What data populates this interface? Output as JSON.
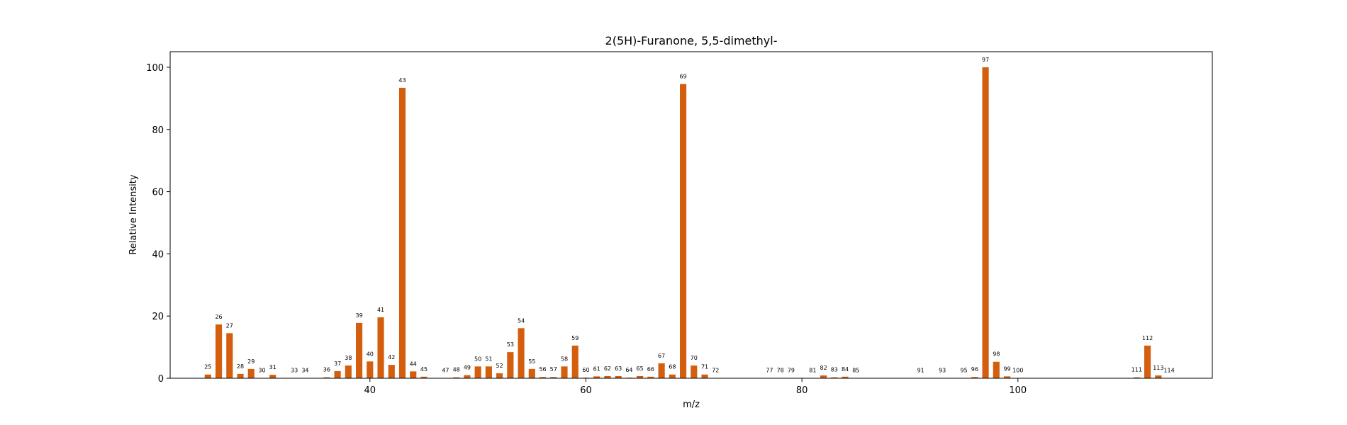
{
  "chart_data": {
    "type": "bar",
    "title": "2(5H)-Furanone, 5,5-dimethyl-",
    "xlabel": "m/z",
    "ylabel": "Relative Intensity",
    "xlim": [
      21.5,
      118
    ],
    "ylim": [
      0,
      105
    ],
    "xticks": [
      40,
      60,
      80,
      100
    ],
    "yticks": [
      0,
      20,
      40,
      60,
      80,
      100
    ],
    "grid": false,
    "bar_color": "#d35f0e",
    "peaks": [
      {
        "mz": 25,
        "intensity": 1.2
      },
      {
        "mz": 26,
        "intensity": 17.3
      },
      {
        "mz": 27,
        "intensity": 14.5
      },
      {
        "mz": 28,
        "intensity": 1.4
      },
      {
        "mz": 29,
        "intensity": 3.0
      },
      {
        "mz": 30,
        "intensity": 0.1
      },
      {
        "mz": 31,
        "intensity": 1.1
      },
      {
        "mz": 33,
        "intensity": 0.1
      },
      {
        "mz": 34,
        "intensity": 0.1
      },
      {
        "mz": 36,
        "intensity": 0.3
      },
      {
        "mz": 37,
        "intensity": 2.3
      },
      {
        "mz": 38,
        "intensity": 4.1
      },
      {
        "mz": 39,
        "intensity": 17.8
      },
      {
        "mz": 40,
        "intensity": 5.4
      },
      {
        "mz": 41,
        "intensity": 19.6
      },
      {
        "mz": 42,
        "intensity": 4.3
      },
      {
        "mz": 43,
        "intensity": 93.4
      },
      {
        "mz": 44,
        "intensity": 2.2
      },
      {
        "mz": 45,
        "intensity": 0.5
      },
      {
        "mz": 47,
        "intensity": 0.1
      },
      {
        "mz": 48,
        "intensity": 0.3
      },
      {
        "mz": 49,
        "intensity": 1.0
      },
      {
        "mz": 50,
        "intensity": 3.8
      },
      {
        "mz": 51,
        "intensity": 3.8
      },
      {
        "mz": 52,
        "intensity": 1.6
      },
      {
        "mz": 53,
        "intensity": 8.4
      },
      {
        "mz": 54,
        "intensity": 16.1
      },
      {
        "mz": 55,
        "intensity": 3.0
      },
      {
        "mz": 56,
        "intensity": 0.4
      },
      {
        "mz": 57,
        "intensity": 0.4
      },
      {
        "mz": 58,
        "intensity": 3.8
      },
      {
        "mz": 59,
        "intensity": 10.5
      },
      {
        "mz": 60,
        "intensity": 0.2
      },
      {
        "mz": 61,
        "intensity": 0.6
      },
      {
        "mz": 62,
        "intensity": 0.7
      },
      {
        "mz": 63,
        "intensity": 0.7
      },
      {
        "mz": 64,
        "intensity": 0.2
      },
      {
        "mz": 65,
        "intensity": 0.7
      },
      {
        "mz": 66,
        "intensity": 0.5
      },
      {
        "mz": 67,
        "intensity": 4.8
      },
      {
        "mz": 68,
        "intensity": 1.2
      },
      {
        "mz": 69,
        "intensity": 94.6
      },
      {
        "mz": 70,
        "intensity": 4.1
      },
      {
        "mz": 71,
        "intensity": 1.2
      },
      {
        "mz": 72,
        "intensity": 0.1
      },
      {
        "mz": 77,
        "intensity": 0.1
      },
      {
        "mz": 78,
        "intensity": 0.1
      },
      {
        "mz": 79,
        "intensity": 0.1
      },
      {
        "mz": 81,
        "intensity": 0.1
      },
      {
        "mz": 82,
        "intensity": 0.9
      },
      {
        "mz": 83,
        "intensity": 0.3
      },
      {
        "mz": 84,
        "intensity": 0.5
      },
      {
        "mz": 85,
        "intensity": 0.1
      },
      {
        "mz": 91,
        "intensity": 0.1
      },
      {
        "mz": 93,
        "intensity": 0.1
      },
      {
        "mz": 95,
        "intensity": 0.1
      },
      {
        "mz": 96,
        "intensity": 0.4
      },
      {
        "mz": 97,
        "intensity": 100.0
      },
      {
        "mz": 98,
        "intensity": 5.3
      },
      {
        "mz": 99,
        "intensity": 0.6
      },
      {
        "mz": 100,
        "intensity": 0.1
      },
      {
        "mz": 111,
        "intensity": 0.3
      },
      {
        "mz": 112,
        "intensity": 10.5
      },
      {
        "mz": 113,
        "intensity": 0.9
      },
      {
        "mz": 114,
        "intensity": 0.1
      }
    ]
  }
}
